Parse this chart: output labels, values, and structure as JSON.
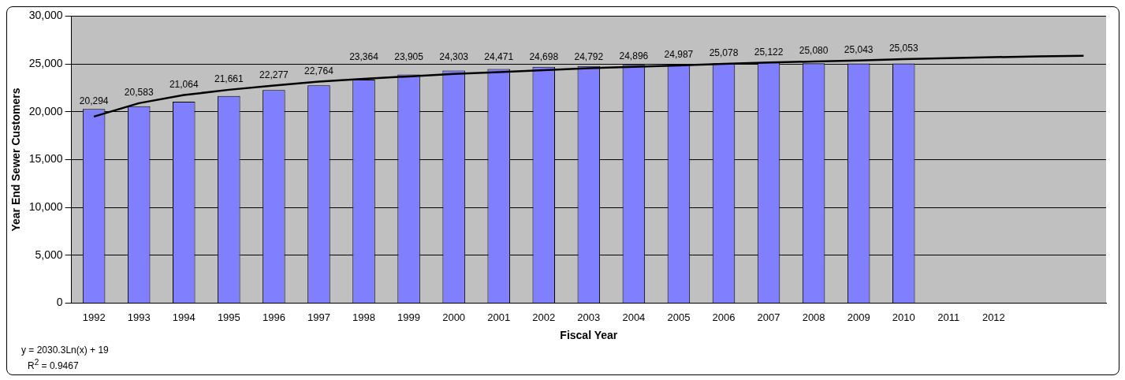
{
  "chart_data": {
    "type": "bar",
    "xlabel": "Fiscal Year",
    "ylabel": "Year End Sewer Customers",
    "categories": [
      "1992",
      "1993",
      "1994",
      "1995",
      "1996",
      "1997",
      "1998",
      "1999",
      "2000",
      "2001",
      "2002",
      "2003",
      "2004",
      "2005",
      "2006",
      "2007",
      "2008",
      "2009",
      "2010",
      "2011",
      "2012",
      null,
      null
    ],
    "series": [
      {
        "color": "#8080ff",
        "values": [
          20294,
          20583,
          21064,
          21661,
          22277,
          22764,
          23364,
          23905,
          24303,
          24471,
          24698,
          24792,
          24896,
          24987,
          25078,
          25122,
          25080,
          25043,
          25053,
          null,
          null,
          null,
          null
        ],
        "value_labels": [
          "20,294",
          "20,583",
          "21,064",
          "21,661",
          "22,277",
          "22,764",
          "23,364",
          "23,905",
          "24,303",
          "24,471",
          "24,698",
          "24,792",
          "24,896",
          "24,987",
          "25,078",
          "25,122",
          "25,080",
          "25,043",
          "25,053",
          null,
          null,
          null,
          null
        ]
      },
      {
        "type": "line",
        "color": "#000000",
        "values": [
          19500,
          20900,
          21750,
          22300,
          22750,
          23150,
          23450,
          23700,
          23950,
          24150,
          24350,
          24550,
          24700,
          24850,
          25000,
          25150,
          25250,
          25350,
          25500,
          25600,
          25700,
          25800,
          25850
        ]
      }
    ],
    "ylim": [
      0,
      30000
    ],
    "yticks": [
      0,
      {
        "value": 5000,
        "label": "5,000"
      },
      {
        "value": 10000,
        "label": "10,000"
      },
      {
        "value": 15000,
        "label": "15,000"
      },
      {
        "value": 20000,
        "label": "20,000"
      },
      {
        "value": 25000,
        "label": "25,000"
      },
      {
        "value": 30000,
        "label": "30,000"
      }
    ],
    "grid": "y",
    "legend": false,
    "annotations": [
      "y = 2030.3Ln(x) + 19",
      "R$^{2}$ = 0.9467"
    ]
  }
}
